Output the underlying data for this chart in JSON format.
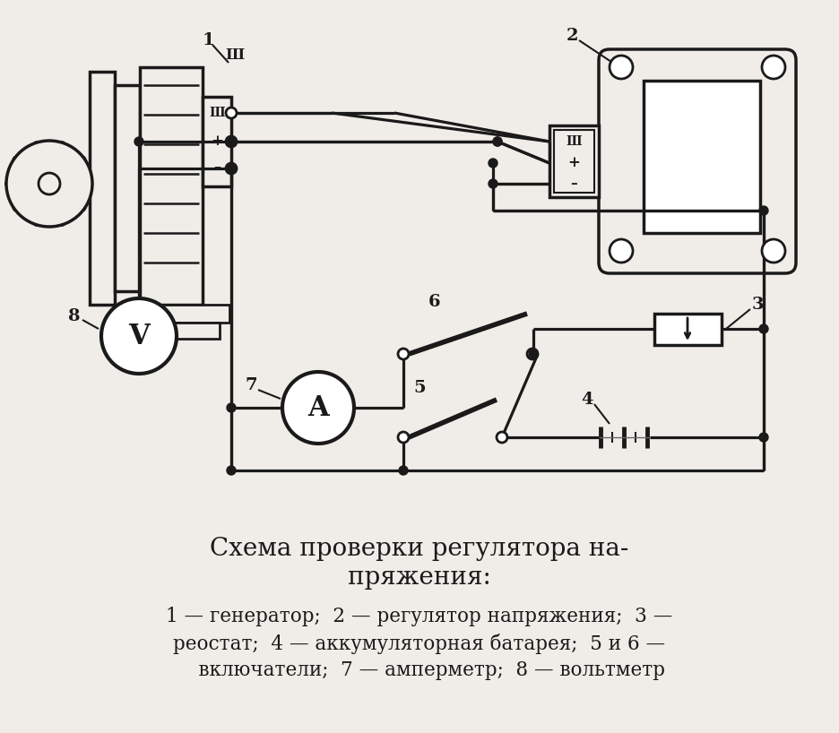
{
  "bg_color": "#f0ede8",
  "line_color": "#1a1a1a",
  "title_line1": "Схема проверки регулятора на-",
  "title_line2": "пряжения:",
  "cap1": "1 — генератор;  2 — регулятор напряжения;  3 —",
  "cap2": "реостат;  4 — аккумуляторная батарея;  5 и 6 —",
  "cap3": "    включатели;  7 — амперметр;  8 — вольтметр",
  "title_fontsize": 20,
  "caption_fontsize": 15.5
}
